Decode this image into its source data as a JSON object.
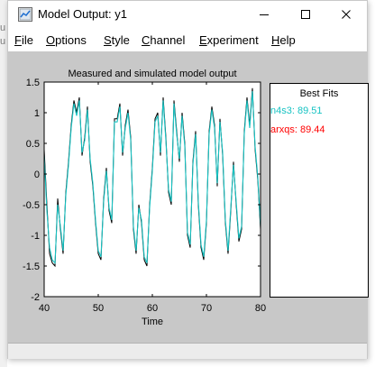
{
  "window": {
    "title": "Model Output: y1",
    "controls": {
      "minimize": "minimize",
      "maximize": "maximize",
      "close": "close"
    }
  },
  "background_chars": [
    "u",
    "u"
  ],
  "menu": [
    {
      "label": "File",
      "underline": 0
    },
    {
      "label": "Options",
      "underline": 0
    },
    {
      "label": "Style",
      "underline": 0
    },
    {
      "label": "Channel",
      "underline": 0
    },
    {
      "label": "Experiment",
      "underline": 0
    },
    {
      "label": "Help",
      "underline": 0
    }
  ],
  "best_fits": {
    "title": "Best Fits",
    "entries": [
      {
        "label": "n4s3: 89.51",
        "color": "#17c3c3"
      },
      {
        "label": "arxqs: 89.44",
        "color": "#ff0000"
      }
    ]
  },
  "chart_data": {
    "type": "line",
    "title": "Measured and simulated model output",
    "xlabel": "Time",
    "ylabel": "",
    "xlim": [
      40,
      80
    ],
    "ylim": [
      -2,
      1.5
    ],
    "xticks": [
      40,
      50,
      60,
      70,
      80
    ],
    "yticks": [
      -2,
      -1.5,
      -1,
      -0.5,
      0,
      0.5,
      1,
      1.5
    ],
    "xtick_labels": [
      "40",
      "50",
      "60",
      "70",
      "80"
    ],
    "ytick_labels": [
      "-2",
      "-1.5",
      "-1",
      "-0.5",
      "0",
      "0.5",
      "1",
      "1.5"
    ],
    "grid": false,
    "x": [
      40,
      40.5,
      41,
      41.5,
      42,
      42.5,
      43,
      43.5,
      44,
      44.5,
      45,
      45.5,
      46,
      46.5,
      47,
      47.5,
      48,
      48.5,
      49,
      49.5,
      50,
      50.5,
      51,
      51.5,
      52,
      52.5,
      53,
      53.5,
      54,
      54.5,
      55,
      55.5,
      56,
      56.5,
      57,
      57.5,
      58,
      58.5,
      59,
      59.5,
      60,
      60.5,
      61,
      61.5,
      62,
      62.5,
      63,
      63.5,
      64,
      64.5,
      65,
      65.5,
      66,
      66.5,
      67,
      67.5,
      68,
      68.5,
      69,
      69.5,
      70,
      70.5,
      71,
      71.5,
      72,
      72.5,
      73,
      73.5,
      74,
      74.5,
      75,
      75.5,
      76,
      76.5,
      77,
      77.5,
      78,
      78.5,
      79,
      79.5,
      80
    ],
    "series": [
      {
        "color": "#000000",
        "values": [
          0.4,
          -0.5,
          -1.3,
          -1.45,
          -1.5,
          -0.4,
          -0.9,
          -1.3,
          -0.3,
          0.2,
          0.8,
          1.2,
          1.0,
          1.25,
          0.3,
          0.6,
          1.1,
          0.2,
          -0.2,
          -0.8,
          -1.3,
          -1.4,
          -0.4,
          0.1,
          -0.6,
          -0.8,
          0.9,
          0.9,
          1.15,
          0.3,
          0.8,
          1.05,
          0.6,
          -0.9,
          -1.3,
          -0.5,
          -0.8,
          -1.4,
          -1.5,
          -0.5,
          0.1,
          0.9,
          1.0,
          0.3,
          1.25,
          0.6,
          -0.3,
          -0.5,
          1.2,
          0.7,
          0.2,
          1.0,
          0.5,
          -1.0,
          -1.2,
          0.2,
          0.7,
          -0.5,
          -1.2,
          -1.4,
          -0.8,
          0.7,
          1.1,
          0.8,
          -0.2,
          0.9,
          0.3,
          -0.8,
          -1.3,
          -0.6,
          0.2,
          -0.5,
          -1.1,
          -0.9,
          0.7,
          1.25,
          0.8,
          1.4,
          0.4,
          -0.1,
          -0.9
        ]
      },
      {
        "color": "#17c3c3",
        "values": [
          0.3,
          -0.6,
          -1.2,
          -1.4,
          -1.45,
          -0.5,
          -0.85,
          -1.25,
          -0.35,
          0.15,
          0.75,
          1.15,
          0.95,
          1.2,
          0.35,
          0.55,
          1.05,
          0.25,
          -0.15,
          -0.75,
          -1.25,
          -1.35,
          -0.45,
          0.05,
          -0.55,
          -0.75,
          0.85,
          0.85,
          1.1,
          0.35,
          0.75,
          1.0,
          0.55,
          -0.85,
          -1.25,
          -0.55,
          -0.75,
          -1.35,
          -1.45,
          -0.55,
          0.05,
          0.85,
          0.95,
          0.35,
          1.2,
          0.55,
          -0.25,
          -0.45,
          1.15,
          0.65,
          0.25,
          0.95,
          0.45,
          -0.95,
          -1.15,
          0.15,
          0.65,
          -0.45,
          -1.15,
          -1.35,
          -0.75,
          0.65,
          1.05,
          0.75,
          -0.15,
          0.85,
          0.35,
          -0.75,
          -1.25,
          -0.55,
          0.15,
          -0.45,
          -1.05,
          -0.85,
          0.65,
          1.2,
          0.75,
          1.35,
          0.45,
          -0.05,
          -0.85
        ]
      }
    ]
  }
}
